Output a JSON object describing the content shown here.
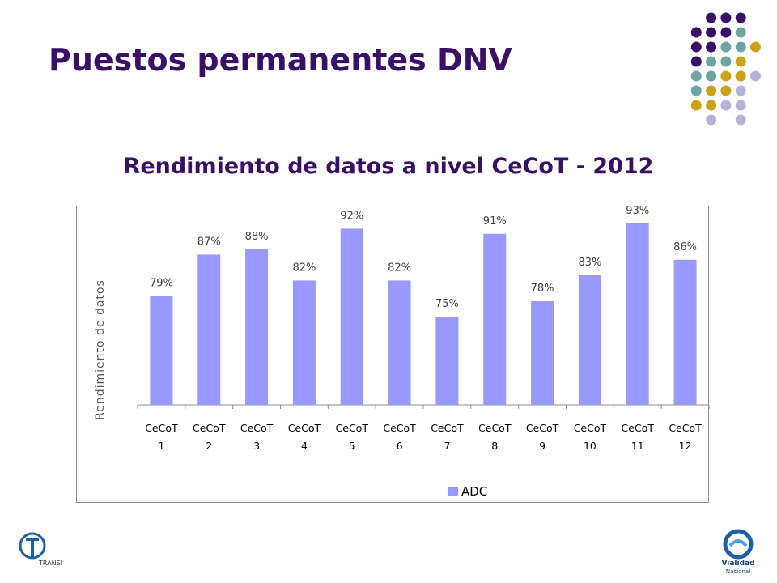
{
  "slide": {
    "title": "Puestos permanentes DNV",
    "chart_title": "Rendimiento de datos a nivel CeCoT - 2012"
  },
  "colors": {
    "title": "#3a0f66",
    "bar": "#9999ff",
    "dot_purple": "#3a0f66",
    "dot_teal": "#6fa3a3",
    "dot_gold": "#c9a21a",
    "dot_lavender": "#b3b3d9"
  },
  "logos": {
    "left_text": "TRANSITO",
    "right_text_1": "Vialidad",
    "right_text_2": "Nacional"
  },
  "chart_data": {
    "type": "bar",
    "categories": [
      "CeCoT 1",
      "CeCoT 2",
      "CeCoT 3",
      "CeCoT 4",
      "CeCoT 5",
      "CeCoT 6",
      "CeCoT 7",
      "CeCoT 8",
      "CeCoT 9",
      "CeCoT 10",
      "CeCoT 11",
      "CeCoT 12"
    ],
    "category_lines": [
      [
        "CeCoT",
        "1"
      ],
      [
        "CeCoT",
        "2"
      ],
      [
        "CeCoT",
        "3"
      ],
      [
        "CeCoT",
        "4"
      ],
      [
        "CeCoT",
        "5"
      ],
      [
        "CeCoT",
        "6"
      ],
      [
        "CeCoT",
        "7"
      ],
      [
        "CeCoT",
        "8"
      ],
      [
        "CeCoT",
        "9"
      ],
      [
        "CeCoT",
        "10"
      ],
      [
        "CeCoT",
        "11"
      ],
      [
        "CeCoT",
        "12"
      ]
    ],
    "series": [
      {
        "name": "ADC",
        "values": [
          79,
          87,
          88,
          82,
          92,
          82,
          75,
          91,
          78,
          83,
          93,
          86
        ]
      }
    ],
    "data_labels": [
      "79%",
      "87%",
      "88%",
      "82%",
      "92%",
      "82%",
      "75%",
      "91%",
      "78%",
      "83%",
      "93%",
      "86%"
    ],
    "ylabel": "Rendimiento de datos",
    "xlabel": "",
    "legend": "bottom",
    "grid": false
  }
}
